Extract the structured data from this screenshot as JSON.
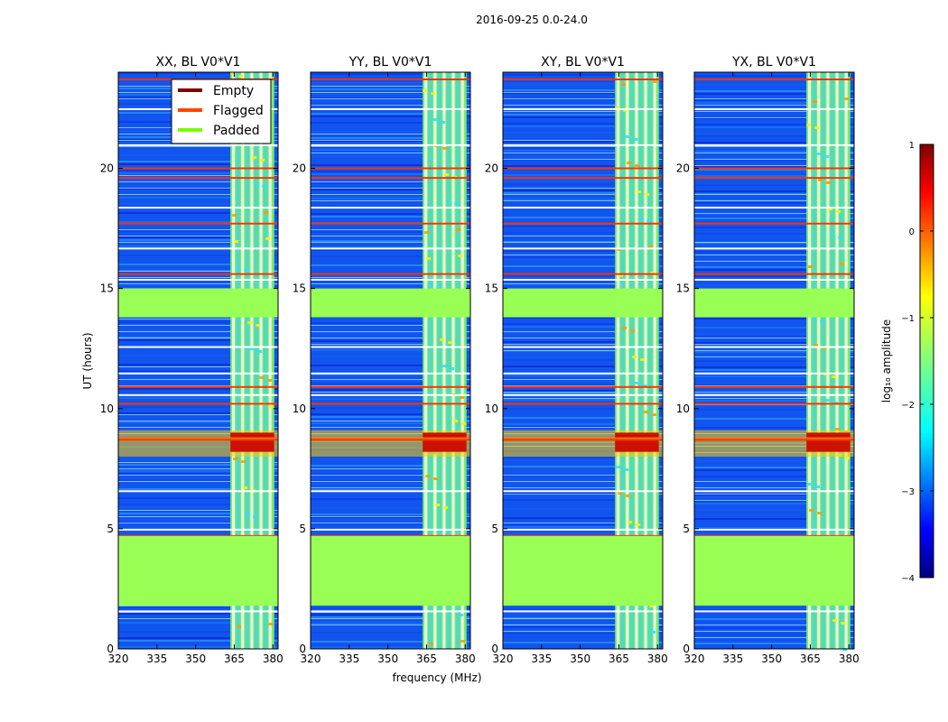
{
  "chart_data": {
    "type": "heatmap",
    "suptitle": "2016-09-25 0.0-24.0",
    "xlabel": "frequency (MHz)",
    "ylabel": "UT (hours)",
    "xlim": [
      320,
      382
    ],
    "ylim": [
      0,
      24
    ],
    "xticks": [
      320,
      335,
      350,
      365,
      380
    ],
    "yticks": [
      0,
      5,
      10,
      15,
      20
    ],
    "panels": [
      {
        "title": "XX, BL V0*V1"
      },
      {
        "title": "YY, BL V0*V1"
      },
      {
        "title": "XY, BL V0*V1"
      },
      {
        "title": "YX, BL V0*V1"
      }
    ],
    "legend": {
      "placement": "upper-right of first panel",
      "entries": [
        {
          "label": "Empty",
          "color": "#800000"
        },
        {
          "label": "Flagged",
          "color": "#ff4500"
        },
        {
          "label": "Padded",
          "color": "#7cfc00"
        }
      ]
    },
    "colorbar": {
      "label": "log₁₀ amplitude",
      "range": [
        -4,
        1
      ],
      "ticks": [
        "1",
        "0",
        "−1",
        "−2",
        "−3",
        "−4"
      ],
      "colormap": "jet"
    },
    "padded_ut_ranges": [
      [
        1.8,
        4.7
      ],
      [
        13.8,
        15.0
      ]
    ],
    "rfi_band_mhz": [
      363.5,
      380.5
    ],
    "flagged_ut_lines": [
      2.0,
      4.7,
      8.7,
      10.2,
      10.9,
      13.9,
      15.6,
      17.7,
      19.6,
      20.0,
      23.7
    ],
    "colors": {
      "background_noise": "#1155ee",
      "padded": "#99ff55",
      "flagged": "#ff3300",
      "band": "#77ee66",
      "hot": "#cc1100"
    }
  }
}
